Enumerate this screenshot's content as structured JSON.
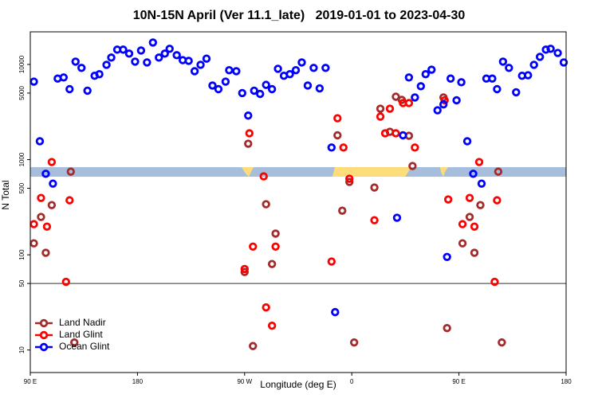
{
  "chart_data": {
    "type": "scatter",
    "title": "10N-15N April (Ver 11.1_late)   2019-01-01 to 2023-04-30",
    "x_label": "Longitude (deg E)",
    "y_label": "N Total",
    "xlim": [
      90,
      540
    ],
    "xticks": [
      {
        "value": 90,
        "label": "90 E"
      },
      180,
      {
        "value": 270,
        "label": "90 W"
      },
      {
        "value": 360,
        "label": "0"
      },
      {
        "value": 450,
        "label": "90 E"
      },
      {
        "value": 540,
        "label": "180"
      }
    ],
    "ylim": [
      5.8,
      22000
    ],
    "ylog": true,
    "yticks": [
      10,
      50,
      100,
      500,
      1000,
      5000,
      10000
    ],
    "hline": 50,
    "legend": "bottom-left",
    "series": [
      {
        "name": "Land Nadir",
        "color": "#a52a2a",
        "x": [
          93,
          99,
          103,
          108,
          124,
          127,
          270,
          273,
          277,
          288,
          293,
          296,
          348,
          352,
          358,
          362,
          379,
          384,
          392,
          397,
          402,
          408,
          411,
          437,
          440,
          453,
          459,
          463,
          468,
          483,
          486
        ],
        "values": [
          132,
          250,
          105,
          333,
          748,
          12,
          66,
          1470,
          11,
          340,
          80,
          167,
          1800,
          291,
          583,
          12,
          509,
          3430,
          1960,
          4580,
          4240,
          1780,
          857,
          4500,
          17,
          132,
          250,
          105,
          333,
          748,
          12
        ]
      },
      {
        "name": "Land Glint",
        "color": "#ff0000",
        "x": [
          93,
          99,
          104,
          108,
          120,
          123,
          270,
          274,
          277,
          286,
          288,
          293,
          296,
          343,
          348,
          353,
          358,
          379,
          384,
          388,
          392,
          397,
          403,
          408,
          413,
          438,
          441,
          453,
          459,
          463,
          467,
          480,
          482
        ],
        "values": [
          210,
          396,
          198,
          944,
          52,
          374,
          71,
          1890,
          122,
          667,
          28,
          18,
          122,
          85,
          2720,
          1340,
          630,
          231,
          2830,
          1890,
          3430,
          1890,
          3930,
          3930,
          1340,
          4200,
          382,
          210,
          396,
          198,
          944,
          52,
          374
        ]
      },
      {
        "name": "Ocean Glint",
        "color": "#0000ff",
        "x": [
          93,
          98,
          103,
          109,
          113,
          118,
          123,
          128,
          133,
          138,
          144,
          148,
          154,
          158,
          163,
          168,
          173,
          178,
          183,
          188,
          193,
          198,
          203,
          207,
          213,
          218,
          223,
          228,
          233,
          238,
          243,
          248,
          254,
          257,
          263,
          268,
          273,
          278,
          283,
          288,
          293,
          298,
          303,
          308,
          313,
          318,
          323,
          328,
          333,
          338,
          343,
          346,
          398,
          403,
          408,
          413,
          418,
          422,
          427,
          432,
          437,
          440,
          443,
          448,
          452,
          457,
          462,
          469,
          473,
          478,
          482,
          487,
          492,
          498,
          503,
          508,
          513,
          518,
          523,
          527,
          533,
          538
        ],
        "values": [
          6600,
          1560,
          710,
          560,
          7100,
          7300,
          5500,
          10700,
          9200,
          5300,
          7600,
          7900,
          9900,
          11800,
          14300,
          14300,
          13000,
          10700,
          14000,
          10500,
          17000,
          11800,
          13000,
          14600,
          12500,
          11100,
          10900,
          8500,
          9900,
          11500,
          6000,
          5500,
          6600,
          8700,
          8500,
          5000,
          2900,
          5300,
          4900,
          6100,
          5500,
          9000,
          7600,
          7900,
          8700,
          10500,
          6000,
          9200,
          5600,
          9200,
          1340,
          25,
          245,
          1800,
          7300,
          4500,
          5900,
          7900,
          8800,
          3300,
          3800,
          95,
          7100,
          4200,
          6500,
          1560,
          710,
          560,
          7100,
          7100,
          5500,
          10700,
          9200,
          5100,
          7600,
          7700,
          9900,
          12000,
          14300,
          14600,
          13200,
          10500
        ]
      }
    ]
  }
}
